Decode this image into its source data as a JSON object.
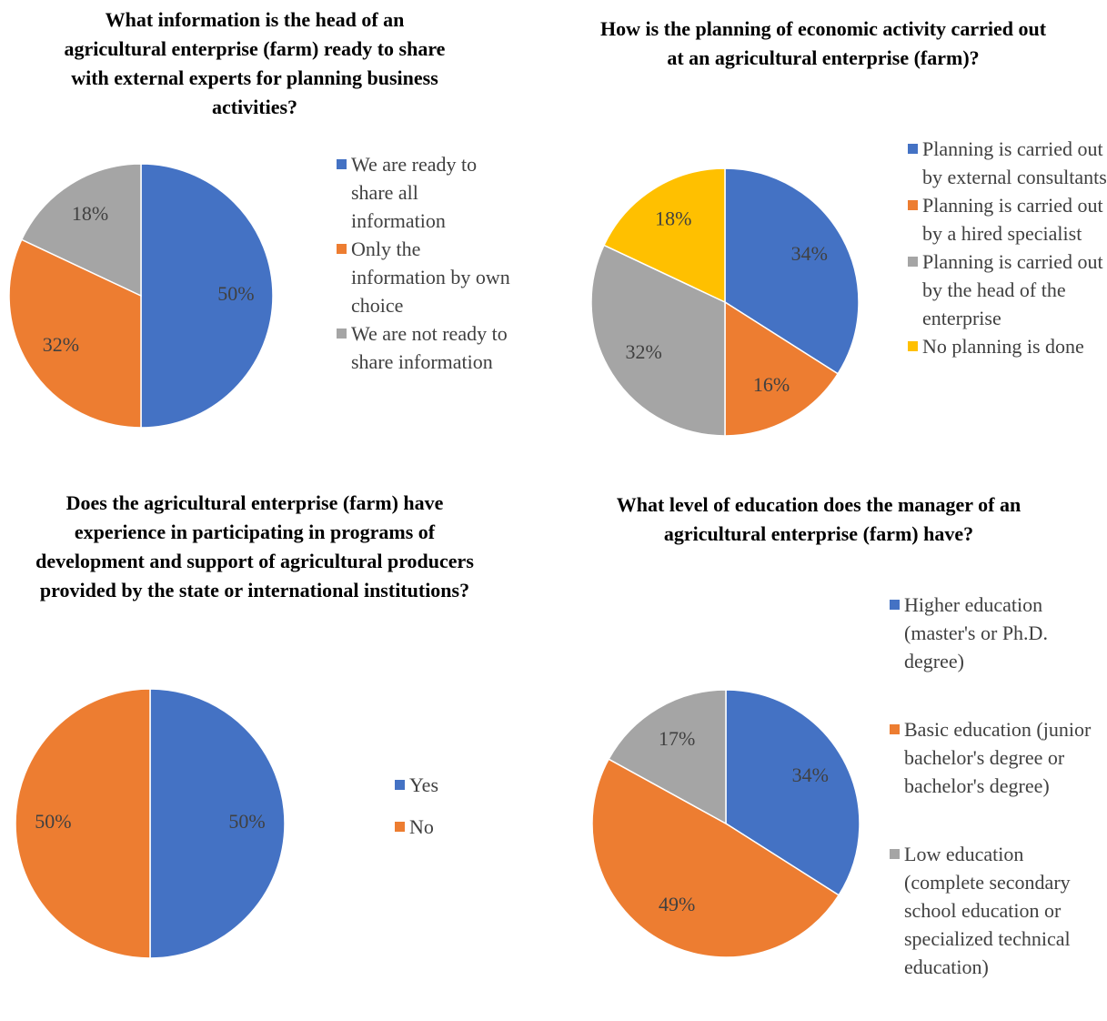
{
  "chart_data": [
    {
      "type": "pie",
      "title": "What information is the head of an agricultural enterprise (farm) ready to share with external experts for planning business activities?",
      "categories": [
        "We are ready to share all information",
        "Only the information by own choice",
        "We are not ready to share information"
      ],
      "values": [
        50,
        32,
        18
      ],
      "value_labels": [
        "50%",
        "32%",
        "18%"
      ],
      "colors": [
        "#4472c4",
        "#ed7d31",
        "#a5a5a5"
      ],
      "legend": "right"
    },
    {
      "type": "pie",
      "title": "How is the planning of economic activity carried out at an agricultural enterprise (farm)?",
      "categories": [
        "Planning is carried out by external consultants",
        "Planning is carried out by a hired specialist",
        "Planning is carried out by the head of the enterprise",
        "No planning is done"
      ],
      "values": [
        34,
        16,
        32,
        18
      ],
      "value_labels": [
        "34%",
        "16%",
        "32%",
        "18%"
      ],
      "colors": [
        "#4472c4",
        "#ed7d31",
        "#a5a5a5",
        "#ffc000"
      ],
      "legend": "right"
    },
    {
      "type": "pie",
      "title": "Does the agricultural enterprise (farm) have experience in participating in programs of development and support of agricultural producers provided by the state or international institutions?",
      "categories": [
        "Yes",
        "No"
      ],
      "values": [
        50,
        50
      ],
      "value_labels": [
        "50%",
        "50%"
      ],
      "colors": [
        "#4472c4",
        "#ed7d31"
      ],
      "legend": "right"
    },
    {
      "type": "pie",
      "title": "What level of education does the manager of an agricultural enterprise (farm) have?",
      "categories": [
        "Higher education (master's or Ph.D. degree)",
        "Basic education (junior bachelor's degree or bachelor's degree)",
        "Low education (complete secondary school education or specialized technical education)"
      ],
      "values": [
        34,
        49,
        17
      ],
      "value_labels": [
        "34%",
        "49%",
        "17%"
      ],
      "colors": [
        "#4472c4",
        "#ed7d31",
        "#a5a5a5"
      ],
      "legend": "right"
    }
  ]
}
